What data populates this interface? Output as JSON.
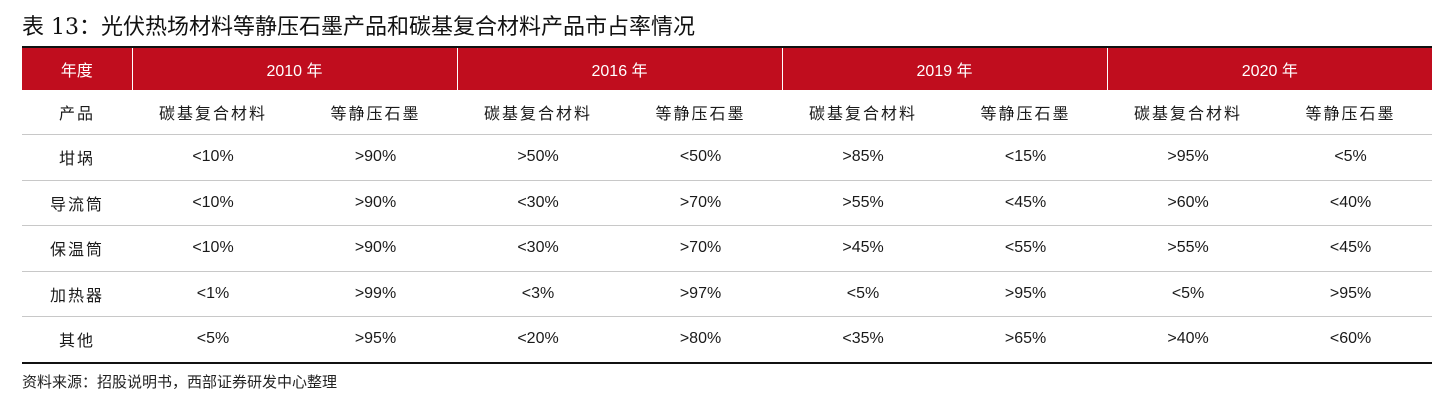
{
  "title": "表 13：光伏热场材料等静压石墨产品和碳基复合材料产品市占率情况",
  "table": {
    "header_label": "年度",
    "years": [
      "2010 年",
      "2016 年",
      "2019 年",
      "2020 年"
    ],
    "product_label": "产品",
    "sub_headers": [
      "碳基复合材料",
      "等静压石墨",
      "碳基复合材料",
      "等静压石墨",
      "碳基复合材料",
      "等静压石墨",
      "碳基复合材料",
      "等静压石墨"
    ],
    "rows": [
      {
        "label": "坩埚",
        "values": [
          "<10%",
          ">90%",
          ">50%",
          "<50%",
          ">85%",
          "<15%",
          ">95%",
          "<5%"
        ]
      },
      {
        "label": "导流筒",
        "values": [
          "<10%",
          ">90%",
          "<30%",
          ">70%",
          ">55%",
          "<45%",
          ">60%",
          "<40%"
        ]
      },
      {
        "label": "保温筒",
        "values": [
          "<10%",
          ">90%",
          "<30%",
          ">70%",
          ">45%",
          "<55%",
          ">55%",
          "<45%"
        ]
      },
      {
        "label": "加热器",
        "values": [
          "<1%",
          ">99%",
          "<3%",
          ">97%",
          "<5%",
          ">95%",
          "<5%",
          ">95%"
        ]
      },
      {
        "label": "其他",
        "values": [
          "<5%",
          ">95%",
          "<20%",
          ">80%",
          "<35%",
          ">65%",
          ">40%",
          "<60%"
        ]
      }
    ]
  },
  "source": "资料来源：招股说明书，西部证券研发中心整理",
  "colors": {
    "header_bg": "#c00d1e",
    "header_text": "#ffffff"
  }
}
